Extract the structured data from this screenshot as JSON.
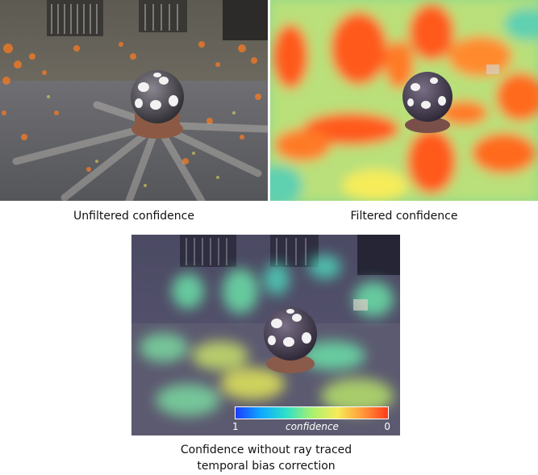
{
  "figure": {
    "panels": [
      {
        "caption": "Unfiltered confidence"
      },
      {
        "caption": "Filtered confidence"
      },
      {
        "caption_line1": "Confidence without ray traced",
        "caption_line2": "temporal bias correction"
      }
    ],
    "colorbar": {
      "left_label": "1",
      "center_label": "confidence",
      "right_label": "0",
      "colors": [
        "#1f3cff",
        "#0fa8ff",
        "#2fe0c8",
        "#a8f070",
        "#f6ec5a",
        "#ff9a3a",
        "#ff3a1a"
      ]
    }
  }
}
